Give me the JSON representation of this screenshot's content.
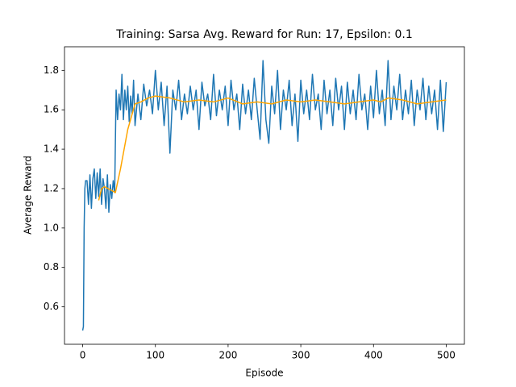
{
  "chart_data": {
    "type": "line",
    "title": "Training: Sarsa Avg. Reward for Run: 17, Epsilon: 0.1",
    "x_label": "Episode",
    "y_label": "Average Reward",
    "xlim": [
      -25,
      525
    ],
    "ylim": [
      0.41,
      1.92
    ],
    "xticks": [
      0,
      100,
      200,
      300,
      400,
      500
    ],
    "yticks": [
      0.6,
      0.8,
      {
        "value": 1.0,
        "label": "1.0"
      },
      1.2,
      1.4,
      1.6,
      1.8
    ],
    "grid": false,
    "series": [
      {
        "color": "#1f77b4",
        "x": [
          0,
          1,
          2,
          3,
          4,
          6,
          8,
          10,
          12,
          14,
          16,
          18,
          20,
          22,
          24,
          26,
          28,
          30,
          32,
          34,
          36,
          38,
          40,
          42,
          44,
          46,
          48,
          50,
          52,
          54,
          56,
          58,
          60,
          62,
          64,
          66,
          68,
          70,
          72,
          76,
          80,
          84,
          88,
          92,
          96,
          100,
          104,
          108,
          112,
          116,
          120,
          124,
          128,
          132,
          136,
          140,
          144,
          148,
          152,
          156,
          160,
          164,
          168,
          172,
          176,
          180,
          184,
          188,
          192,
          196,
          200,
          204,
          208,
          212,
          216,
          220,
          224,
          228,
          232,
          236,
          240,
          244,
          248,
          252,
          256,
          260,
          264,
          268,
          272,
          276,
          280,
          284,
          288,
          292,
          296,
          300,
          304,
          308,
          312,
          316,
          320,
          324,
          328,
          332,
          336,
          340,
          344,
          348,
          352,
          356,
          360,
          364,
          368,
          372,
          376,
          380,
          384,
          388,
          392,
          396,
          400,
          404,
          408,
          412,
          416,
          420,
          424,
          428,
          432,
          436,
          440,
          444,
          448,
          452,
          456,
          460,
          464,
          468,
          472,
          476,
          480,
          484,
          488,
          492,
          496,
          500
        ],
        "values": [
          0.48,
          0.5,
          1.0,
          1.2,
          1.24,
          1.24,
          1.12,
          1.27,
          1.1,
          1.25,
          1.3,
          1.15,
          1.28,
          1.16,
          1.3,
          1.12,
          1.25,
          1.2,
          1.1,
          1.27,
          1.08,
          1.22,
          1.15,
          1.24,
          1.18,
          1.7,
          1.55,
          1.68,
          1.6,
          1.78,
          1.55,
          1.7,
          1.6,
          1.72,
          1.54,
          1.67,
          1.58,
          1.75,
          1.52,
          1.68,
          1.55,
          1.73,
          1.62,
          1.7,
          1.58,
          1.8,
          1.6,
          1.74,
          1.52,
          1.72,
          1.38,
          1.7,
          1.6,
          1.75,
          1.55,
          1.68,
          1.58,
          1.72,
          1.6,
          1.7,
          1.5,
          1.74,
          1.62,
          1.68,
          1.55,
          1.78,
          1.57,
          1.7,
          1.6,
          1.72,
          1.52,
          1.75,
          1.6,
          1.68,
          1.5,
          1.73,
          1.58,
          1.7,
          1.55,
          1.76,
          1.6,
          1.45,
          1.85,
          1.55,
          1.43,
          1.72,
          1.58,
          1.8,
          1.5,
          1.7,
          1.6,
          1.75,
          1.52,
          1.68,
          1.44,
          1.75,
          1.58,
          1.7,
          1.55,
          1.78,
          1.6,
          1.68,
          1.5,
          1.75,
          1.58,
          1.7,
          1.52,
          1.76,
          1.6,
          1.72,
          1.5,
          1.74,
          1.58,
          1.7,
          1.55,
          1.78,
          1.6,
          1.68,
          1.5,
          1.72,
          1.56,
          1.8,
          1.58,
          1.7,
          1.52,
          1.85,
          1.55,
          1.72,
          1.6,
          1.78,
          1.55,
          1.7,
          1.58,
          1.75,
          1.52,
          1.7,
          1.6,
          1.76,
          1.55,
          1.72,
          1.58,
          1.7,
          1.5,
          1.75,
          1.49,
          1.74
        ]
      },
      {
        "color": "#ffa500",
        "x": [
          22,
          26,
          30,
          40,
          45,
          52,
          62,
          72,
          80,
          90,
          100,
          120,
          140,
          160,
          180,
          200,
          220,
          240,
          260,
          280,
          300,
          320,
          340,
          360,
          380,
          400,
          410,
          420,
          440,
          460,
          480,
          500
        ],
        "values": [
          1.14,
          1.2,
          1.21,
          1.19,
          1.18,
          1.3,
          1.5,
          1.63,
          1.64,
          1.66,
          1.67,
          1.66,
          1.64,
          1.65,
          1.64,
          1.66,
          1.63,
          1.64,
          1.63,
          1.65,
          1.64,
          1.65,
          1.64,
          1.63,
          1.64,
          1.65,
          1.64,
          1.66,
          1.65,
          1.63,
          1.64,
          1.65
        ]
      }
    ]
  }
}
